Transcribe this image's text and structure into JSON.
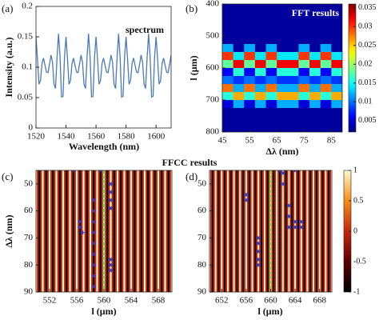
{
  "chart_data": [
    {
      "type": "line",
      "panel": "(a)",
      "title": "spectrum",
      "xlabel": "Wavelength (nm)",
      "ylabel": "Intensity (a.u.)",
      "color": "#4a7ab5",
      "x": [
        1520,
        1521,
        1522,
        1523,
        1524,
        1525,
        1526,
        1527,
        1528,
        1529,
        1530,
        1531,
        1532,
        1533,
        1534,
        1535,
        1536,
        1537,
        1538,
        1539,
        1540,
        1541,
        1542,
        1543,
        1544,
        1545,
        1546,
        1547,
        1548,
        1549,
        1550,
        1551,
        1552,
        1553,
        1554,
        1555,
        1556,
        1557,
        1558,
        1559,
        1560,
        1561,
        1562,
        1563,
        1564,
        1565,
        1566,
        1567,
        1568,
        1569,
        1570,
        1571,
        1572,
        1573,
        1574,
        1575,
        1576,
        1577,
        1578,
        1579,
        1580,
        1581,
        1582,
        1583,
        1584,
        1585,
        1586,
        1587,
        1588,
        1589,
        1590,
        1591,
        1592,
        1593,
        1594,
        1595,
        1596,
        1597,
        1598,
        1599,
        1600,
        1601,
        1602,
        1603,
        1604,
        1605,
        1606,
        1607,
        1608,
        1609,
        1610
      ],
      "values": [
        0.15,
        0.113,
        0.072,
        0.078,
        0.106,
        0.115,
        0.103,
        0.092,
        0.091,
        0.105,
        0.12,
        0.108,
        0.072,
        0.065,
        0.115,
        0.155,
        0.118,
        0.051,
        0.052,
        0.117,
        0.15,
        0.113,
        0.072,
        0.078,
        0.106,
        0.115,
        0.103,
        0.092,
        0.091,
        0.105,
        0.12,
        0.108,
        0.072,
        0.065,
        0.115,
        0.155,
        0.118,
        0.051,
        0.052,
        0.117,
        0.15,
        0.113,
        0.072,
        0.078,
        0.106,
        0.115,
        0.103,
        0.092,
        0.091,
        0.105,
        0.12,
        0.108,
        0.072,
        0.065,
        0.115,
        0.155,
        0.118,
        0.051,
        0.052,
        0.117,
        0.15,
        0.113,
        0.072,
        0.078,
        0.106,
        0.115,
        0.103,
        0.092,
        0.091,
        0.105,
        0.12,
        0.108,
        0.072,
        0.065,
        0.115,
        0.155,
        0.118,
        0.051,
        0.052,
        0.117,
        0.15,
        0.113,
        0.072,
        0.078,
        0.106,
        0.115,
        0.103,
        0.092,
        0.091,
        0.105,
        0.12
      ],
      "xlim": [
        1520,
        1610
      ],
      "xticks": [
        1520,
        1540,
        1560,
        1580,
        1600
      ],
      "ylim": [
        0,
        0.2
      ],
      "yticks": [
        0,
        0.05,
        0.1,
        0.15,
        0.2
      ]
    },
    {
      "type": "heatmap",
      "panel": "(b)",
      "title": "FFT results",
      "xlabel": "Δλ (nm)",
      "ylabel": "l (μm)",
      "colormap": "jet",
      "y_inverted": true,
      "x": [
        45,
        49,
        53,
        57,
        61,
        65,
        69,
        73,
        77,
        81,
        85
      ],
      "y": [
        400,
        425,
        450,
        475,
        500,
        525,
        550,
        575,
        600,
        625,
        650,
        675,
        700,
        725,
        750,
        775
      ],
      "z": [
        [
          0.003,
          0.003,
          0.003,
          0.003,
          0.003,
          0.003,
          0.003,
          0.003,
          0.003,
          0.003,
          0.003
        ],
        [
          0.003,
          0.003,
          0.003,
          0.003,
          0.003,
          0.003,
          0.003,
          0.003,
          0.003,
          0.003,
          0.003
        ],
        [
          0.003,
          0.003,
          0.003,
          0.003,
          0.003,
          0.003,
          0.003,
          0.003,
          0.003,
          0.003,
          0.003
        ],
        [
          0.003,
          0.003,
          0.003,
          0.003,
          0.003,
          0.003,
          0.003,
          0.003,
          0.003,
          0.003,
          0.003
        ],
        [
          0.003,
          0.003,
          0.003,
          0.003,
          0.003,
          0.003,
          0.003,
          0.003,
          0.003,
          0.003,
          0.003
        ],
        [
          0.012,
          0.003,
          0.012,
          0.003,
          0.012,
          0.003,
          0.003,
          0.012,
          0.003,
          0.012,
          0.003
        ],
        [
          0.03,
          0.014,
          0.03,
          0.014,
          0.03,
          0.014,
          0.014,
          0.03,
          0.014,
          0.03,
          0.014
        ],
        [
          0.018,
          0.032,
          0.018,
          0.032,
          0.018,
          0.032,
          0.032,
          0.018,
          0.032,
          0.018,
          0.032
        ],
        [
          0.006,
          0.016,
          0.006,
          0.016,
          0.006,
          0.016,
          0.016,
          0.006,
          0.016,
          0.006,
          0.016
        ],
        [
          0.01,
          0.008,
          0.01,
          0.008,
          0.01,
          0.008,
          0.008,
          0.01,
          0.008,
          0.01,
          0.008
        ],
        [
          0.028,
          0.012,
          0.028,
          0.012,
          0.028,
          0.012,
          0.012,
          0.028,
          0.012,
          0.028,
          0.012
        ],
        [
          0.016,
          0.026,
          0.016,
          0.026,
          0.016,
          0.026,
          0.026,
          0.016,
          0.026,
          0.016,
          0.026
        ],
        [
          0.005,
          0.012,
          0.005,
          0.012,
          0.005,
          0.012,
          0.012,
          0.005,
          0.012,
          0.005,
          0.012
        ],
        [
          0.003,
          0.003,
          0.003,
          0.003,
          0.003,
          0.003,
          0.003,
          0.003,
          0.003,
          0.003,
          0.003
        ],
        [
          0.003,
          0.003,
          0.003,
          0.003,
          0.003,
          0.003,
          0.003,
          0.003,
          0.003,
          0.003,
          0.003
        ],
        [
          0.003,
          0.003,
          0.003,
          0.003,
          0.003,
          0.003,
          0.003,
          0.003,
          0.003,
          0.003,
          0.003
        ]
      ],
      "xlim": [
        45,
        89
      ],
      "xticks": [
        45,
        55,
        65,
        75,
        85
      ],
      "ylim": [
        400,
        800
      ],
      "yticks": [
        400,
        500,
        600,
        700,
        800
      ],
      "clim": [
        0.002,
        0.036
      ],
      "cticks": [
        0.005,
        0.01,
        0.015,
        0.02,
        0.025,
        0.03,
        0.035
      ]
    },
    {
      "type": "heatmap",
      "panel": "(c)",
      "title": "FFCC results",
      "xlabel": "l (μm)",
      "ylabel": "Δλ (nm)",
      "colormap": "hot",
      "y_inverted": true,
      "x": [
        550,
        550.25,
        550.5,
        550.75,
        551,
        551.25,
        551.5,
        551.75,
        552,
        552.25,
        552.5,
        552.75,
        553,
        553.25,
        553.5,
        553.75,
        554,
        554.25,
        554.5,
        554.75,
        555,
        555.25,
        555.5,
        555.75,
        556,
        556.25,
        556.5,
        556.75,
        557,
        557.25,
        557.5,
        557.75,
        558,
        558.25,
        558.5,
        558.75,
        559,
        559.25,
        559.5,
        559.75,
        560,
        560.25,
        560.5,
        560.75,
        561,
        561.25,
        561.5,
        561.75,
        562,
        562.25,
        562.5,
        562.75,
        563,
        563.25,
        563.5,
        563.75,
        564,
        564.25,
        564.5,
        564.75,
        565,
        565.25,
        565.5,
        565.75,
        566,
        566.25,
        566.5,
        566.75,
        567,
        567.25,
        567.5,
        567.75,
        568,
        568.25,
        568.5,
        568.75,
        569,
        569.25,
        569.5,
        569.75,
        570
      ],
      "values": [
        1,
        0,
        -1,
        0,
        1,
        0,
        -1,
        0,
        1,
        0,
        -1,
        0,
        1,
        0,
        -1,
        0,
        1,
        0,
        -1,
        0,
        1,
        0,
        -1,
        0,
        1,
        0,
        -1,
        0,
        1,
        0,
        -1,
        0,
        1,
        0,
        -1,
        0,
        1,
        0,
        -1,
        0,
        1,
        0,
        -1,
        0,
        1,
        0,
        -1,
        0,
        1,
        0,
        -1,
        0,
        1,
        0,
        -1,
        0,
        1,
        0,
        -1,
        0,
        1,
        0,
        -1,
        0,
        1,
        0,
        -1,
        0,
        1,
        0,
        -1,
        0,
        1,
        0,
        -1,
        0,
        1,
        0,
        -1,
        0,
        1
      ],
      "highlight_x": 560,
      "highlight_color": "#7fd34e",
      "marker_color": "#2a3bd0",
      "points": {
        "x": [
          555.5,
          556.5,
          556.5,
          556.8,
          558.5,
          558.5,
          558.5,
          558.5,
          558.5,
          558.5,
          558.5,
          558.5,
          558.5,
          561,
          561,
          561,
          561,
          561,
          561,
          561,
          559.5
        ],
        "y": [
          45,
          64,
          66,
          68,
          56,
          60,
          64,
          68,
          72,
          76,
          80,
          84,
          88,
          50,
          53,
          56,
          59,
          78,
          80,
          82,
          45
        ]
      },
      "xlim": [
        550,
        570
      ],
      "xticks": [
        552,
        556,
        560,
        564,
        568
      ],
      "ylim": [
        45,
        90
      ],
      "yticks": [
        50,
        60,
        70,
        80,
        90
      ],
      "clim": [
        -1,
        1
      ]
    },
    {
      "type": "heatmap",
      "panel": "(d)",
      "xlabel": "l (μm)",
      "colormap": "hot",
      "y_inverted": true,
      "x": [
        650,
        650.25,
        650.5,
        650.75,
        651,
        651.25,
        651.5,
        651.75,
        652,
        652.25,
        652.5,
        652.75,
        653,
        653.25,
        653.5,
        653.75,
        654,
        654.25,
        654.5,
        654.75,
        655,
        655.25,
        655.5,
        655.75,
        656,
        656.25,
        656.5,
        656.75,
        657,
        657.25,
        657.5,
        657.75,
        658,
        658.25,
        658.5,
        658.75,
        659,
        659.25,
        659.5,
        659.75,
        660,
        660.25,
        660.5,
        660.75,
        661,
        661.25,
        661.5,
        661.75,
        662,
        662.25,
        662.5,
        662.75,
        663,
        663.25,
        663.5,
        663.75,
        664,
        664.25,
        664.5,
        664.75,
        665,
        665.25,
        665.5,
        665.75,
        666,
        666.25,
        666.5,
        666.75,
        667,
        667.25,
        667.5,
        667.75,
        668,
        668.25,
        668.5,
        668.75,
        669,
        669.25,
        669.5,
        669.75,
        670
      ],
      "values": [
        1,
        0,
        -1,
        0,
        1,
        0,
        -1,
        0,
        1,
        0,
        -1,
        0,
        1,
        0,
        -1,
        0,
        1,
        0,
        -1,
        0,
        1,
        0,
        -1,
        0,
        1,
        0,
        -1,
        0,
        1,
        0,
        -1,
        0,
        1,
        0,
        -1,
        0,
        1,
        0,
        -1,
        0,
        1,
        0,
        -1,
        0,
        1,
        0,
        -1,
        0,
        1,
        0,
        -1,
        0,
        1,
        0,
        -1,
        0,
        1,
        0,
        -1,
        0,
        1,
        0,
        -1,
        0,
        1,
        0,
        -1,
        0,
        1,
        0,
        -1,
        0,
        1,
        0,
        -1,
        0,
        1,
        0,
        -1,
        0,
        1
      ],
      "highlight_x": 660,
      "highlight_color": "#7fd34e",
      "marker_color": "#2a3bd0",
      "points": {
        "x": [
          656,
          656,
          658,
          658,
          658,
          658,
          658,
          662,
          662,
          663,
          663,
          663,
          664,
          664,
          665,
          665,
          664,
          661.5
        ],
        "y": [
          54,
          56,
          70,
          72,
          75,
          78,
          80,
          46,
          50,
          58,
          62,
          66,
          64,
          66,
          64,
          66,
          45,
          45
        ]
      },
      "xlim": [
        650,
        670
      ],
      "xticks": [
        652,
        656,
        660,
        664,
        668
      ],
      "ylim": [
        45,
        90
      ],
      "yticks": [
        50,
        60,
        70,
        80,
        90
      ],
      "clim": [
        -1,
        1
      ],
      "cticks": [
        -1,
        -0.5,
        0,
        0.5,
        1
      ]
    }
  ]
}
